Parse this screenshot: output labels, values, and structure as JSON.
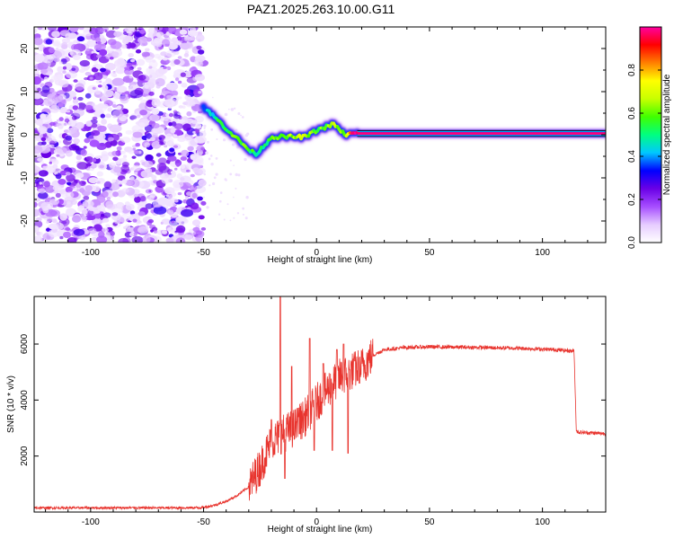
{
  "title": "PAZ1.2025.263.10.00.G11",
  "chart_data": [
    {
      "type": "heatmap",
      "xlabel": "Height of straight line (km)",
      "ylabel": "Frequency (Hz)",
      "xlim": [
        -125,
        128
      ],
      "ylim": [
        -25,
        25
      ],
      "x_ticks": [
        -100,
        -50,
        0,
        50,
        100
      ],
      "y_ticks": [
        -20,
        -10,
        0,
        10,
        20
      ],
      "colorbar": {
        "label": "Normalized spectral amplitude",
        "range": [
          0,
          1
        ],
        "ticks": [
          0.0,
          0.2,
          0.4,
          0.6,
          0.8
        ],
        "tick_labels": [
          "0.0",
          "0.2",
          "0.4",
          "0.6",
          "0.8"
        ],
        "colormap": [
          "#ffffff",
          "#e6ccff",
          "#a64dff",
          "#6a00e6",
          "#0000ff",
          "#00c8ff",
          "#00ff80",
          "#40ff00",
          "#c8ff00",
          "#ffff00",
          "#ff8000",
          "#ff0000",
          "#ff00a0"
        ]
      },
      "noise_region_x": [
        -125,
        -50
      ],
      "ridge": {
        "x": [
          -50,
          -45,
          -40,
          -35,
          -30,
          -27,
          -24,
          -20,
          -15,
          -10,
          -5,
          0,
          5,
          8,
          10,
          13,
          16,
          18,
          128
        ],
        "y": [
          6.5,
          4,
          1.5,
          -1,
          -3.5,
          -4.5,
          -3,
          -0.5,
          -0.5,
          -0.5,
          -0.5,
          1,
          2,
          2.5,
          1,
          0,
          0.3,
          0.3,
          0.3
        ],
        "intensity": [
          0.35,
          0.5,
          0.55,
          0.6,
          0.55,
          0.5,
          0.5,
          0.6,
          0.6,
          0.65,
          0.65,
          0.6,
          0.6,
          0.65,
          0.6,
          0.6,
          0.95,
          0.98,
          0.98
        ]
      }
    },
    {
      "type": "line",
      "xlabel": "Height of straight line (km)",
      "ylabel": "SNR (10 * v/v)",
      "xlim": [
        -125,
        128
      ],
      "ylim": [
        0,
        7700
      ],
      "x_ticks": [
        -100,
        -50,
        0,
        50,
        100
      ],
      "y_ticks": [
        2000,
        4000,
        6000
      ],
      "line_color": "#e8342e",
      "envelope": {
        "x": [
          -125,
          -60,
          -50,
          -45,
          -40,
          -35,
          -30,
          -25,
          -20,
          -15,
          -10,
          -5,
          0,
          5,
          10,
          15,
          20,
          25,
          30,
          40,
          50,
          70,
          90,
          105,
          114,
          115,
          116,
          128
        ],
        "y": [
          150,
          150,
          160,
          250,
          380,
          600,
          900,
          1600,
          2500,
          2800,
          3000,
          3400,
          3900,
          4400,
          4800,
          5000,
          5200,
          5600,
          5800,
          5880,
          5900,
          5880,
          5850,
          5800,
          5750,
          2900,
          2850,
          2800
        ]
      },
      "spikes": [
        {
          "x": -20,
          "y": 3300
        },
        {
          "x": -16,
          "y": 7700
        },
        {
          "x": -14,
          "y": 1200
        },
        {
          "x": -11,
          "y": 5200
        },
        {
          "x": -8,
          "y": 3400
        },
        {
          "x": -3,
          "y": 6200
        },
        {
          "x": -1,
          "y": 2200
        },
        {
          "x": 3,
          "y": 5300
        },
        {
          "x": 7,
          "y": 2200
        },
        {
          "x": 9,
          "y": 5800
        },
        {
          "x": 12,
          "y": 6000
        },
        {
          "x": 14,
          "y": 2100
        },
        {
          "x": 17,
          "y": 5400
        },
        {
          "x": 19,
          "y": 4600
        }
      ]
    }
  ]
}
